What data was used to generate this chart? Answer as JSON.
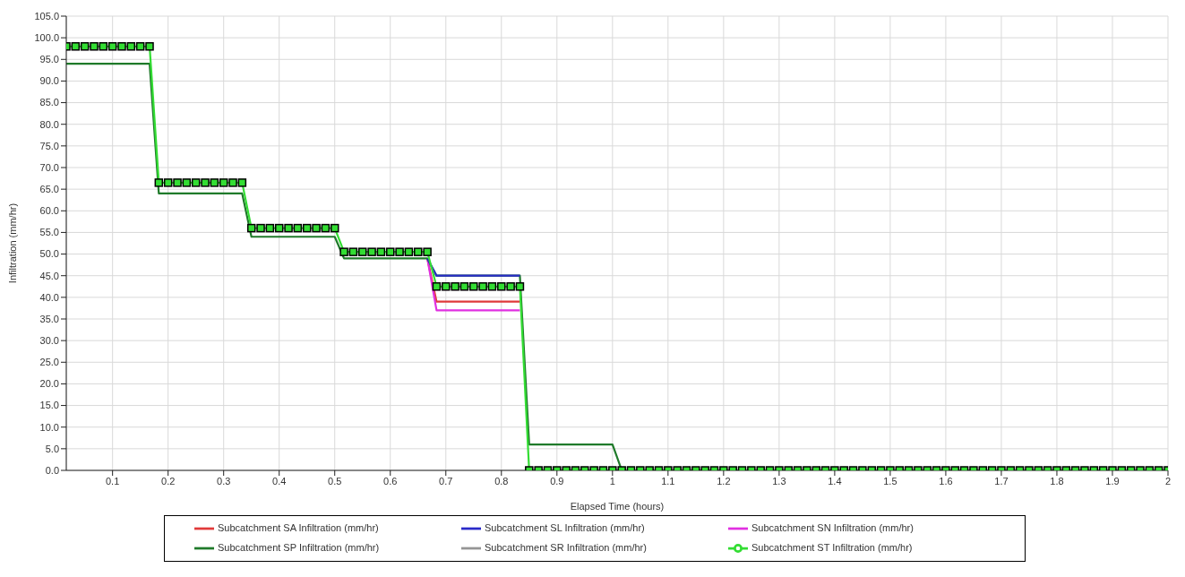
{
  "chart_data": {
    "type": "line",
    "xlabel": "Elapsed Time (hours)",
    "ylabel": "Infiltration (mm/hr)",
    "xlim": [
      0.0167,
      2
    ],
    "ylim": [
      0,
      105
    ],
    "xticks": [
      0.1,
      0.2,
      0.3,
      0.4,
      0.5,
      0.6,
      0.7,
      0.8,
      0.9,
      1.0,
      1.1,
      1.2,
      1.3,
      1.4,
      1.5,
      1.6,
      1.7,
      1.8,
      1.9,
      2
    ],
    "yticks": [
      {
        "value": 0,
        "label": "0.0"
      },
      {
        "value": 5,
        "label": "5.0"
      },
      {
        "value": 10,
        "label": "10.0"
      },
      {
        "value": 15,
        "label": "15.0"
      },
      {
        "value": 20,
        "label": "20.0"
      },
      {
        "value": 25,
        "label": "25.0"
      },
      {
        "value": 30,
        "label": "30.0"
      },
      {
        "value": 35,
        "label": "35.0"
      },
      {
        "value": 40,
        "label": "40.0"
      },
      {
        "value": 45,
        "label": "45.0"
      },
      {
        "value": 50,
        "label": "50.0"
      },
      {
        "value": 55,
        "label": "55.0"
      },
      {
        "value": 60,
        "label": "60.0"
      },
      {
        "value": 65,
        "label": "65.0"
      },
      {
        "value": 70,
        "label": "70.0"
      },
      {
        "value": 75,
        "label": "75.0"
      },
      {
        "value": 80,
        "label": "80.0"
      },
      {
        "value": 85,
        "label": "85.0"
      },
      {
        "value": 90,
        "label": "90.0"
      },
      {
        "value": 95,
        "label": "95.0"
      },
      {
        "value": 100,
        "label": "100.0"
      },
      {
        "value": 105,
        "label": "105.0"
      }
    ],
    "grid": true,
    "legend": "bottom",
    "line_style": "solid",
    "series": [
      {
        "name": "Subcatchment SA Infiltration (mm/hr)",
        "color": "#e03a3a",
        "marker": "none",
        "x": [
          0.6667,
          0.6833,
          0.8333
        ],
        "values": [
          49,
          39,
          39
        ]
      },
      {
        "name": "Subcatchment SN Infiltration (mm/hr)",
        "color": "#e030e0",
        "marker": "none",
        "x": [
          0.6667,
          0.6833,
          0.8333
        ],
        "values": [
          49,
          37,
          37
        ]
      },
      {
        "name": "Subcatchment SR Infiltration (mm/hr)",
        "color": "#959595",
        "marker": "none"
      },
      {
        "name": "Subcatchment SP Infiltration (mm/hr)",
        "color": "#1f7a2a",
        "marker": "none",
        "x": [
          0.0167,
          0.1667,
          0.1833,
          0.3333,
          0.35,
          0.5,
          0.5167,
          0.6667,
          0.6833,
          0.8333,
          0.85,
          1.0,
          1.0167
        ],
        "values": [
          94,
          94,
          64,
          64,
          54,
          54,
          49,
          49,
          45,
          45,
          6,
          6,
          0
        ]
      },
      {
        "name": "Subcatchment SL Infiltration (mm/hr)",
        "color": "#2a2ac8",
        "marker": "none",
        "x": [
          0.6667,
          0.6833,
          0.8333
        ],
        "values": [
          49,
          45,
          45
        ]
      },
      {
        "name": "Subcatchment ST Infiltration (mm/hr)",
        "color": "#33dd33",
        "marker": "square",
        "x": [
          0.0167,
          0.0333,
          0.05,
          0.0667,
          0.0833,
          0.1,
          0.1167,
          0.1333,
          0.15,
          0.1667,
          0.1833,
          0.2,
          0.2167,
          0.2333,
          0.25,
          0.2667,
          0.2833,
          0.3,
          0.3167,
          0.3333,
          0.35,
          0.3667,
          0.3833,
          0.4,
          0.4167,
          0.4333,
          0.45,
          0.4667,
          0.4833,
          0.5,
          0.5167,
          0.5333,
          0.55,
          0.5667,
          0.5833,
          0.6,
          0.6167,
          0.6333,
          0.65,
          0.6667,
          0.6833,
          0.7,
          0.7167,
          0.7333,
          0.75,
          0.7667,
          0.7833,
          0.8,
          0.8167,
          0.8333,
          0.85,
          0.8667,
          0.8833,
          0.9,
          0.9167,
          0.9333,
          0.95,
          0.9667,
          0.9833,
          1,
          1.0167,
          1.0333,
          1.05,
          1.0667,
          1.0833,
          1.1,
          1.1167,
          1.1333,
          1.15,
          1.1667,
          1.1833,
          1.2,
          1.2167,
          1.2333,
          1.25,
          1.2667,
          1.2833,
          1.3,
          1.3167,
          1.3333,
          1.35,
          1.3667,
          1.3833,
          1.4,
          1.4167,
          1.4333,
          1.45,
          1.4667,
          1.4833,
          1.5,
          1.5167,
          1.5333,
          1.55,
          1.5667,
          1.5833,
          1.6,
          1.6167,
          1.6333,
          1.65,
          1.6667,
          1.6833,
          1.7,
          1.7167,
          1.7333,
          1.75,
          1.7667,
          1.7833,
          1.8,
          1.8167,
          1.8333,
          1.85,
          1.8667,
          1.8833,
          1.9,
          1.9167,
          1.9333,
          1.95,
          1.9667,
          1.9833,
          2
        ],
        "values": [
          98,
          98,
          98,
          98,
          98,
          98,
          98,
          98,
          98,
          98,
          66.5,
          66.5,
          66.5,
          66.5,
          66.5,
          66.5,
          66.5,
          66.5,
          66.5,
          66.5,
          56,
          56,
          56,
          56,
          56,
          56,
          56,
          56,
          56,
          56,
          50.5,
          50.5,
          50.5,
          50.5,
          50.5,
          50.5,
          50.5,
          50.5,
          50.5,
          50.5,
          42.5,
          42.5,
          42.5,
          42.5,
          42.5,
          42.5,
          42.5,
          42.5,
          42.5,
          42.5,
          0,
          0,
          0,
          0,
          0,
          0,
          0,
          0,
          0,
          0,
          0,
          0,
          0,
          0,
          0,
          0,
          0,
          0,
          0,
          0,
          0,
          0,
          0,
          0,
          0,
          0,
          0,
          0,
          0,
          0,
          0,
          0,
          0,
          0,
          0,
          0,
          0,
          0,
          0,
          0,
          0,
          0,
          0,
          0,
          0,
          0,
          0,
          0,
          0,
          0,
          0,
          0,
          0,
          0,
          0,
          0,
          0,
          0,
          0,
          0,
          0,
          0,
          0,
          0,
          0,
          0,
          0,
          0,
          0,
          0
        ]
      }
    ]
  }
}
